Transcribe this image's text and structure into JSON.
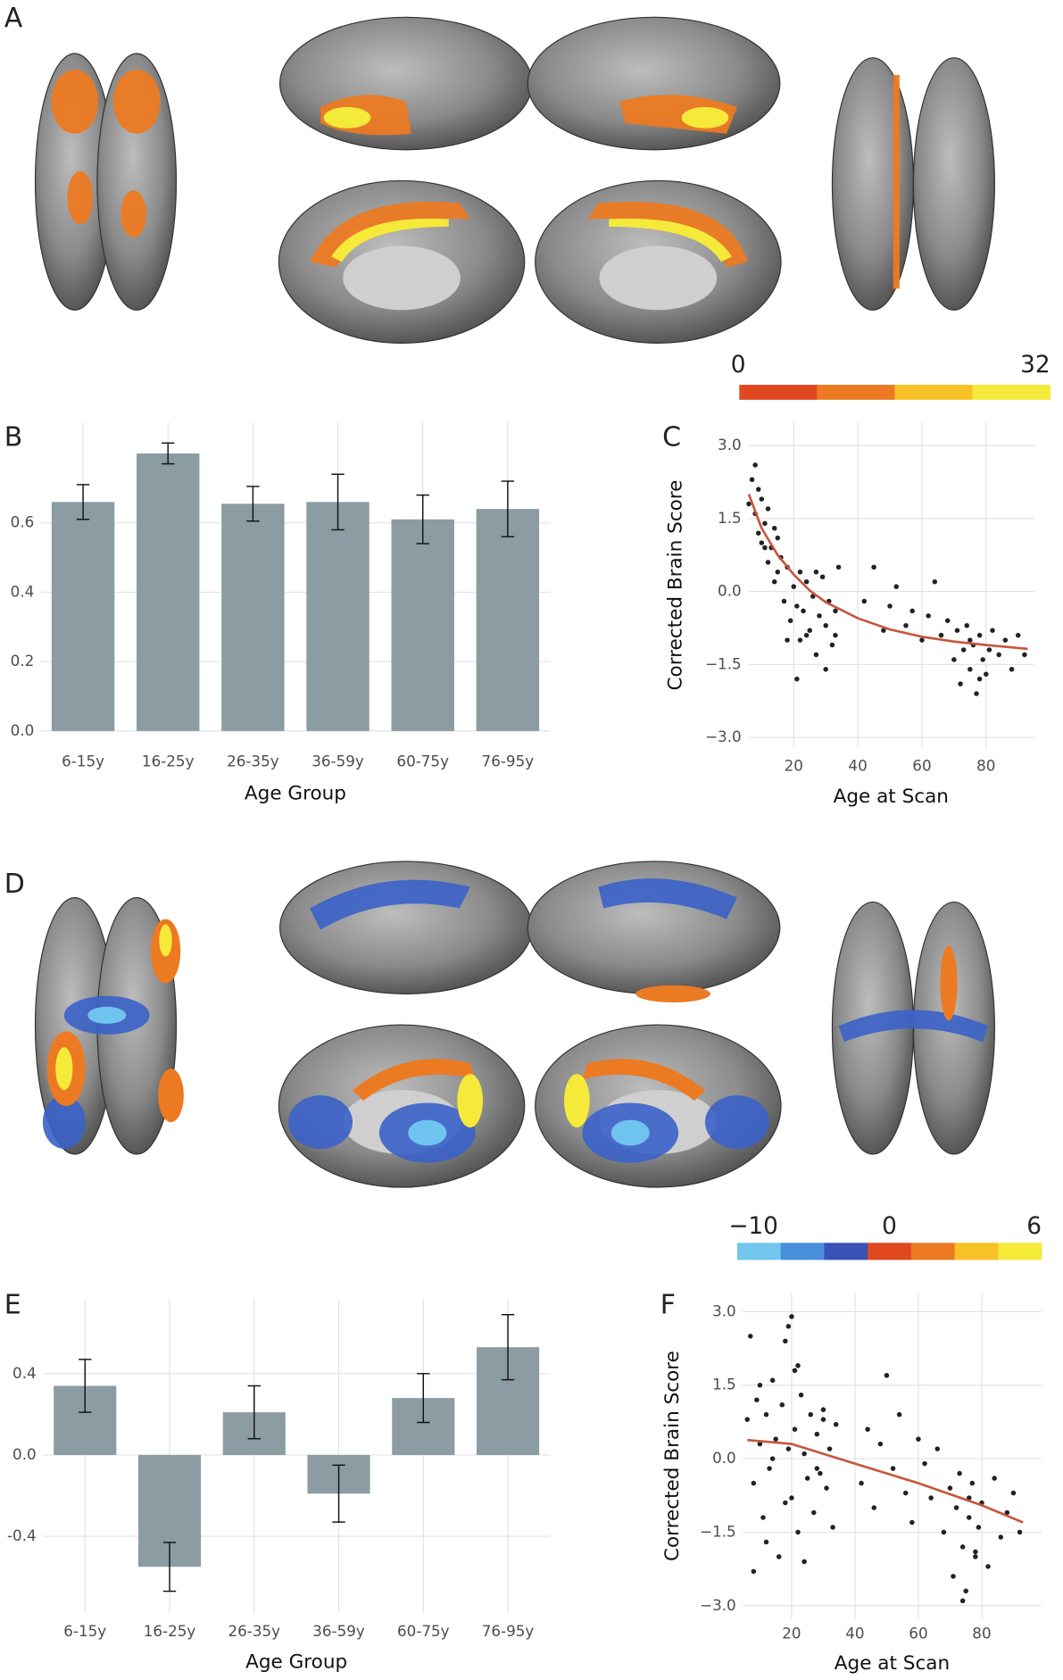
{
  "figure_panels": [
    "A",
    "D"
  ],
  "colorbars": [
    {
      "ticks": [
        0,
        32
      ],
      "colors": [
        "#e0481f",
        "#ec7a22",
        "#f8c126",
        "#f5e93a"
      ]
    },
    {
      "ticks": [
        {
          "value": -10,
          "label": "−10"
        },
        0,
        6
      ],
      "colors": [
        "#72c6ef",
        "#4a8fdb",
        "#3a52b5",
        "#e0481f",
        "#ec7a22",
        "#f8c126",
        "#f5e93a"
      ]
    }
  ],
  "chart_data": [
    {
      "type": "bar",
      "label": "B",
      "x_label": "Age Group",
      "categories": [
        "6-15y",
        "16-25y",
        "26-35y",
        "36-59y",
        "60-75y",
        "76-95y"
      ],
      "values": [
        0.66,
        0.8,
        0.655,
        0.66,
        0.61,
        0.64
      ],
      "errors": [
        0.05,
        0.03,
        0.05,
        0.08,
        0.07,
        0.08
      ],
      "color": "#8c9ca3",
      "ylim": [
        0,
        0.89
      ],
      "yticks": [
        {
          "value": 0,
          "label": "0.0"
        },
        0.2,
        0.4,
        0.6
      ],
      "grid": true
    },
    {
      "type": "scatter",
      "label": "C",
      "x_label": "Age at Scan",
      "y_label": "Corrected Brain Score",
      "x": [
        7,
        8,
        8,
        9,
        10,
        10,
        11,
        12,
        12,
        13,
        14,
        15,
        15,
        16,
        17,
        18,
        19,
        20,
        21,
        22,
        22,
        23,
        24,
        25,
        26,
        27,
        28,
        29,
        30,
        31,
        32,
        33,
        34,
        6,
        9,
        11,
        14,
        18,
        21,
        24,
        27,
        30,
        33,
        42,
        45,
        48,
        50,
        52,
        55,
        57,
        60,
        62,
        64,
        66,
        68,
        70,
        71,
        72,
        73,
        74,
        75,
        76,
        77,
        78,
        79,
        80,
        82,
        84,
        86,
        88,
        90,
        92,
        75,
        78,
        81
      ],
      "y": [
        2.3,
        1.6,
        2.6,
        1.2,
        1.9,
        1.0,
        1.4,
        0.6,
        1.7,
        0.9,
        0.2,
        1.1,
        0.4,
        0.7,
        -0.2,
        0.5,
        -0.6,
        0.1,
        -0.3,
        0.4,
        -1.0,
        -0.4,
        0.2,
        -0.8,
        -0.1,
        -1.3,
        -0.5,
        0.3,
        -0.7,
        -0.2,
        -1.1,
        -0.4,
        0.5,
        1.8,
        2.1,
        0.9,
        1.3,
        -1.0,
        -1.8,
        -0.9,
        0.4,
        -1.6,
        -0.9,
        -0.2,
        0.5,
        -0.8,
        -0.3,
        0.1,
        -0.7,
        -0.4,
        -1.0,
        -0.5,
        0.2,
        -0.9,
        -0.6,
        -1.4,
        -0.8,
        -1.9,
        -1.2,
        -0.7,
        -1.6,
        -1.1,
        -2.1,
        -0.9,
        -1.4,
        -1.7,
        -0.8,
        -1.3,
        -1.0,
        -1.6,
        -0.9,
        -1.3,
        -1.0,
        -1.8,
        -1.2
      ],
      "color": "#222222",
      "fit": {
        "x": [
          6,
          10,
          15,
          20,
          25,
          30,
          40,
          50,
          60,
          70,
          80,
          93
        ],
        "y": [
          2.0,
          1.3,
          0.75,
          0.35,
          0.02,
          -0.22,
          -0.55,
          -0.78,
          -0.93,
          -1.03,
          -1.1,
          -1.18
        ],
        "color": "#c8553d"
      },
      "xlim": [
        5.7,
        95
      ],
      "xticks": [
        20,
        40,
        60,
        80
      ],
      "ylim": [
        -3.22,
        3.48
      ],
      "yticks": [
        {
          "value": 3,
          "label": "3.0"
        },
        1.5,
        {
          "value": 0,
          "label": "0.0"
        },
        {
          "value": -1.5,
          "label": "−1.5"
        },
        {
          "value": -3,
          "label": "−3.0"
        }
      ],
      "grid": true
    },
    {
      "type": "bar",
      "label": "E",
      "x_label": "Age Group",
      "categories": [
        "6-15y",
        "16-25y",
        "26-35y",
        "36-59y",
        "60-75y",
        "76-95y"
      ],
      "values": [
        0.34,
        -0.55,
        0.21,
        -0.19,
        0.28,
        0.53
      ],
      "errors": [
        0.13,
        0.12,
        0.13,
        0.14,
        0.12,
        0.16
      ],
      "color": "#8c9ca3",
      "ylim": [
        -0.78,
        0.77
      ],
      "yticks": [
        0.4,
        {
          "value": 0,
          "label": "0.0"
        },
        {
          "value": -0.4,
          "label": "-0.4"
        }
      ],
      "grid": true
    },
    {
      "type": "scatter",
      "label": "F",
      "x_label": "Age at Scan",
      "y_label": "Corrected Brain Score",
      "x": [
        6,
        7,
        8,
        9,
        10,
        11,
        12,
        13,
        14,
        15,
        16,
        17,
        18,
        19,
        20,
        20,
        21,
        21,
        22,
        23,
        24,
        25,
        26,
        27,
        28,
        29,
        30,
        31,
        32,
        33,
        34,
        8,
        10,
        12,
        14,
        18,
        19,
        22,
        24,
        28,
        30,
        42,
        44,
        46,
        48,
        50,
        52,
        54,
        56,
        58,
        60,
        62,
        64,
        66,
        68,
        70,
        71,
        72,
        73,
        74,
        75,
        76,
        77,
        78,
        79,
        80,
        82,
        84,
        86,
        88,
        90,
        92,
        74,
        76,
        78
      ],
      "y": [
        0.8,
        2.5,
        -0.5,
        1.2,
        0.3,
        -1.2,
        0.9,
        -0.2,
        1.6,
        0.4,
        -2.0,
        1.1,
        2.4,
        0.2,
        2.9,
        -0.8,
        1.8,
        0.6,
        -1.5,
        1.3,
        0.1,
        -0.4,
        0.9,
        -1.1,
        0.5,
        -0.3,
        1.0,
        -0.6,
        0.2,
        -1.4,
        0.7,
        -2.3,
        1.5,
        -1.7,
        0.0,
        -0.9,
        2.7,
        1.9,
        -2.1,
        -0.2,
        0.8,
        -0.5,
        0.6,
        -1.0,
        0.3,
        1.7,
        -0.2,
        0.9,
        -0.7,
        -1.3,
        0.4,
        -0.1,
        -0.8,
        0.2,
        -1.5,
        -0.6,
        -2.4,
        -1.0,
        -0.3,
        -1.8,
        -2.7,
        -1.2,
        -0.5,
        -2.0,
        -1.4,
        -0.9,
        -2.2,
        -0.4,
        -1.6,
        -1.1,
        -0.7,
        -1.5,
        -2.9,
        -0.8,
        -1.9
      ],
      "color": "#222222",
      "fit": {
        "x": [
          6,
          20,
          40,
          60,
          80,
          93
        ],
        "y": [
          0.38,
          0.3,
          -0.1,
          -0.5,
          -0.95,
          -1.3
        ],
        "color": "#c8553d"
      },
      "xlim": [
        4.5,
        98.9
      ],
      "xticks": [
        20,
        40,
        60,
        80
      ],
      "ylim": [
        -3.27,
        3.38
      ],
      "yticks": [
        {
          "value": 3,
          "label": "3.0"
        },
        1.5,
        {
          "value": 0,
          "label": "0.0"
        },
        {
          "value": -1.5,
          "label": "−1.5"
        },
        {
          "value": -3,
          "label": "−3.0"
        }
      ],
      "grid": true
    }
  ]
}
